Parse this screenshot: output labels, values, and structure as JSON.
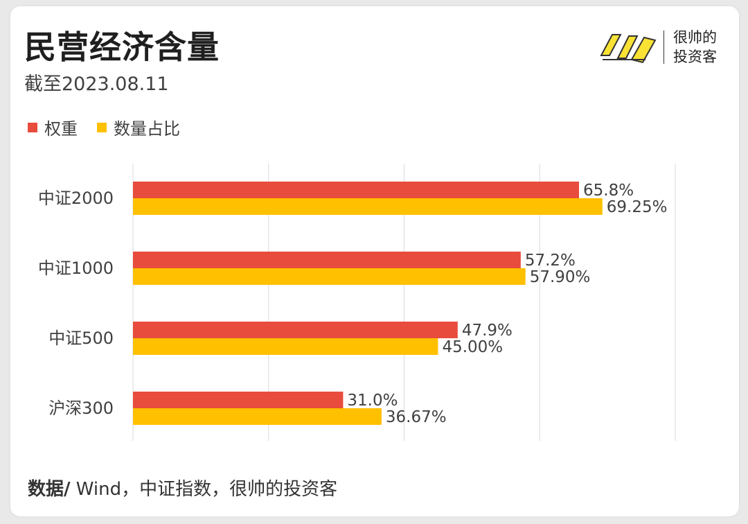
{
  "header": {
    "title": "民营经济含量",
    "subtitle": "截至2023.08.11"
  },
  "brand": {
    "logo_text": "帅",
    "line1": "很帅的",
    "line2": "投资客",
    "logo_color": "#f9e234"
  },
  "legend": [
    {
      "label": "权重",
      "color": "#e84c3d"
    },
    {
      "label": "数量占比",
      "color": "#ffc000"
    }
  ],
  "chart_data": {
    "type": "bar",
    "orientation": "horizontal",
    "categories": [
      "中证2000",
      "中证1000",
      "中证500",
      "沪深300"
    ],
    "series": [
      {
        "name": "权重",
        "color": "#e84c3d",
        "values": [
          65.8,
          57.2,
          47.9,
          31.0
        ],
        "labels": [
          "65.8%",
          "57.2%",
          "47.9%",
          "31.0%"
        ]
      },
      {
        "name": "数量占比",
        "color": "#ffc000",
        "values": [
          69.25,
          57.9,
          45.0,
          36.67
        ],
        "labels": [
          "69.25%",
          "57.90%",
          "45.00%",
          "36.67%"
        ]
      }
    ],
    "xlim": [
      0,
      80
    ],
    "grid": true,
    "legend_position": "top-left"
  },
  "footer": {
    "source_label": "数据/",
    "source_text": " Wind，中证指数，很帅的投资客"
  }
}
